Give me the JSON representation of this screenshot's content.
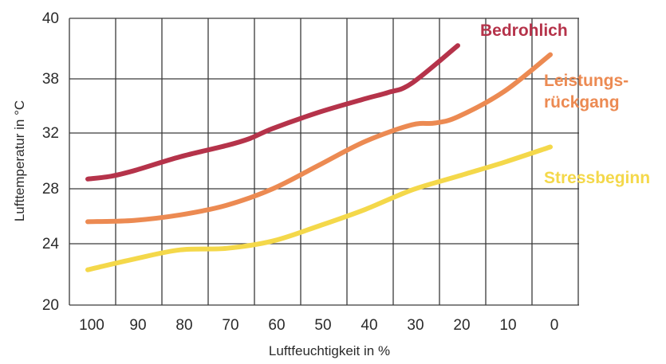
{
  "chart_data": {
    "type": "line",
    "xlabel": "Luftfeuchtigkeit in %",
    "ylabel": "Lufttemperatur in °C",
    "x_ticks": [
      "100",
      "90",
      "80",
      "70",
      "60",
      "50",
      "40",
      "30",
      "20",
      "10",
      "0"
    ],
    "y_ticks": [
      "20",
      "24",
      "28",
      "32",
      "38",
      "40"
    ],
    "x_reversed": true,
    "grid": true,
    "series": [
      {
        "name": "Bedrohlich",
        "color": "#b5334a",
        "label_lines": [
          "Bedrohlich"
        ],
        "points": [
          [
            100,
            28.7
          ],
          [
            95,
            28.9
          ],
          [
            90,
            29.3
          ],
          [
            80,
            30.3
          ],
          [
            70,
            31.1
          ],
          [
            65,
            31.6
          ],
          [
            60,
            32.5
          ],
          [
            50,
            34.3
          ],
          [
            40,
            35.8
          ],
          [
            35,
            36.5
          ],
          [
            30,
            37.5
          ],
          [
            20,
            39.1
          ]
        ]
      },
      {
        "name": "Leistungsrückgang",
        "color": "#ec8a52",
        "label_lines": [
          "Leistungs-",
          "rückgang"
        ],
        "points": [
          [
            100,
            25.6
          ],
          [
            90,
            25.7
          ],
          [
            80,
            26.1
          ],
          [
            70,
            26.8
          ],
          [
            60,
            28.0
          ],
          [
            50,
            29.7
          ],
          [
            40,
            31.4
          ],
          [
            30,
            32.9
          ],
          [
            25,
            33.1
          ],
          [
            20,
            33.8
          ],
          [
            10,
            36.6
          ],
          [
            0,
            38.8
          ]
        ]
      },
      {
        "name": "Stressbeginn",
        "color": "#f4d84a",
        "label_lines": [
          "Stressbeginn"
        ],
        "points": [
          [
            100,
            22.3
          ],
          [
            90,
            23.0
          ],
          [
            80,
            23.6
          ],
          [
            70,
            23.7
          ],
          [
            60,
            24.2
          ],
          [
            50,
            25.3
          ],
          [
            40,
            26.5
          ],
          [
            30,
            27.9
          ],
          [
            20,
            28.9
          ],
          [
            10,
            29.9
          ],
          [
            0,
            31.0
          ]
        ]
      }
    ]
  }
}
